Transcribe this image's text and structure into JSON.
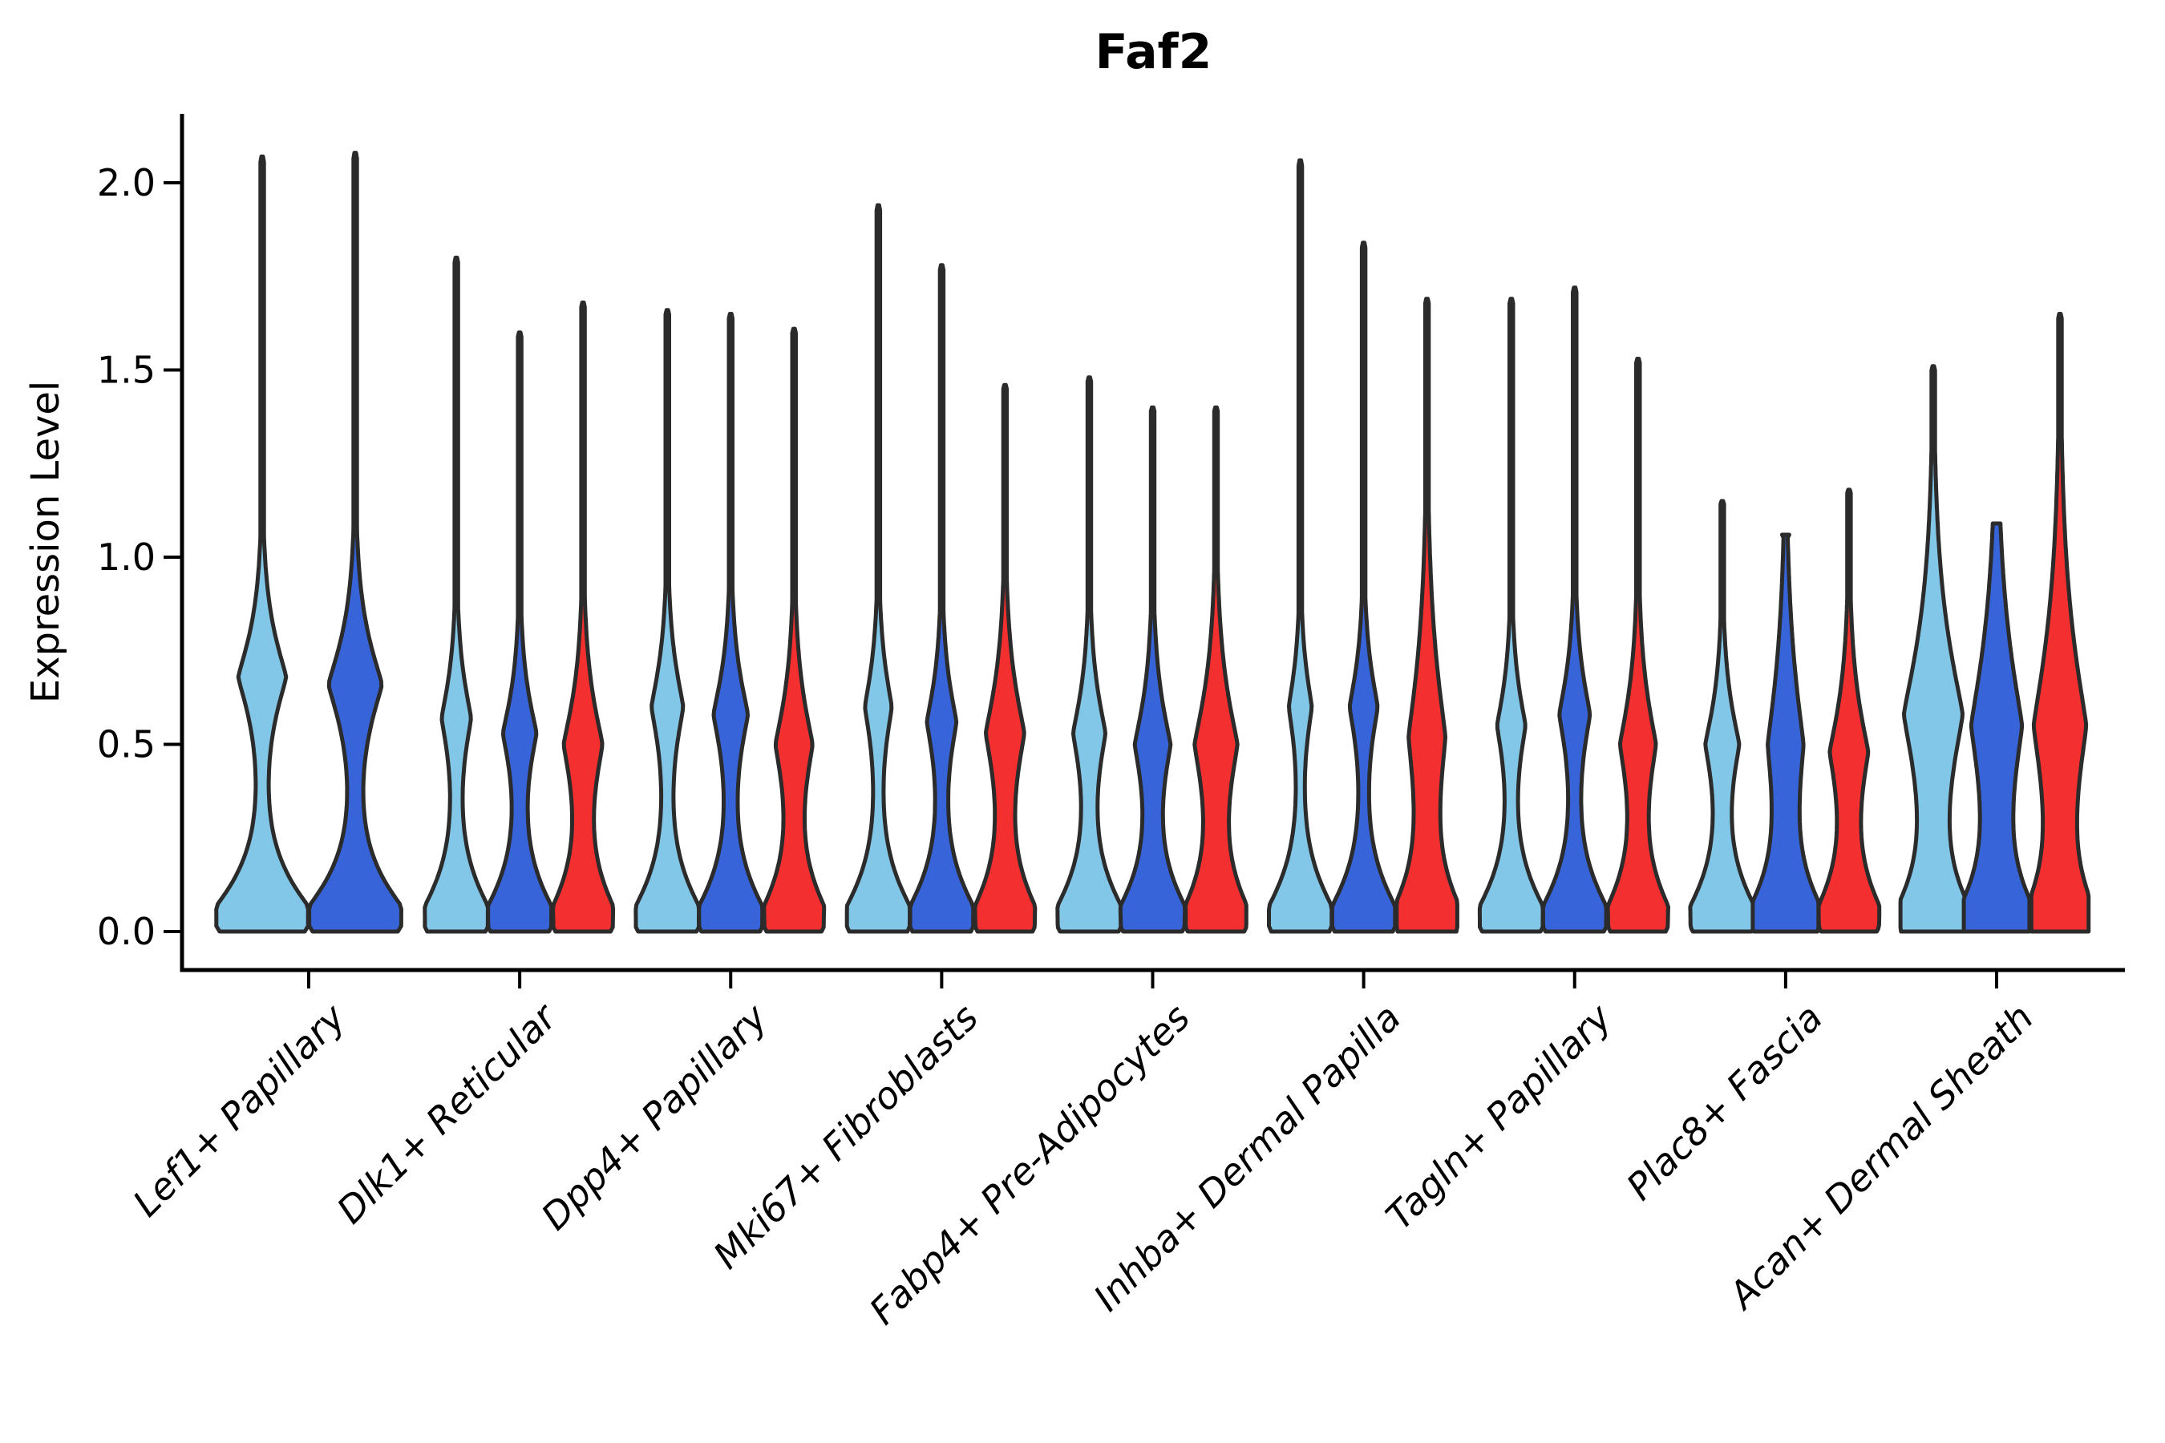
{
  "title": "Faf2",
  "y_axis": {
    "label": "Expression Level",
    "ticks": [
      "0.0",
      "0.5",
      "1.0",
      "1.5",
      "2.0"
    ],
    "tick_values": [
      0.0,
      0.5,
      1.0,
      1.5,
      2.0
    ],
    "ylim_top": 2.18
  },
  "palette": {
    "blue_light": "#82C7E8",
    "blue_dark": "#3765D9",
    "red": "#F42F2F",
    "edge": "#2B2B2B",
    "axis": "#000000"
  },
  "chart_data": {
    "type": "violin",
    "title": "Faf2",
    "xlabel": "",
    "ylabel": "Expression Level",
    "ylim": [
      -0.1,
      2.18
    ],
    "grid": false,
    "legend": "none",
    "hues": [
      "blue_light",
      "blue_dark",
      "red"
    ],
    "categories": [
      "Lef1+ Papillary",
      "Dlk1+ Reticular",
      "Dpp4+ Papillary",
      "Mki67+ Fibroblasts",
      "Fabp4+ Pre-Adipocytes",
      "Inhba+ Dermal Papilla",
      "Tagln+ Papillary",
      "Plac8+ Fascia",
      "Acan+ Dermal Sheath"
    ],
    "groups": [
      {
        "label": "Lef1+ Papillary",
        "violins": [
          {
            "hue": "blue_light",
            "max": 2.07,
            "bulge_amp": 0.52,
            "bulge_center": 0.68,
            "bulge_sigma": 0.17,
            "half_width": 57,
            "offset": -58,
            "tip": "point"
          },
          {
            "hue": "blue_dark",
            "max": 2.08,
            "bulge_amp": 0.58,
            "bulge_center": 0.66,
            "bulge_sigma": 0.18,
            "half_width": 57,
            "offset": 58,
            "tip": "point"
          }
        ]
      },
      {
        "label": "Dlk1+ Reticular",
        "violins": [
          {
            "hue": "blue_light",
            "max": 1.8,
            "bulge_amp": 0.46,
            "bulge_center": 0.57,
            "bulge_sigma": 0.16,
            "half_width": 39,
            "offset": -79,
            "tip": "point"
          },
          {
            "hue": "blue_dark",
            "max": 1.6,
            "bulge_amp": 0.52,
            "bulge_center": 0.53,
            "bulge_sigma": 0.16,
            "half_width": 39,
            "offset": 0,
            "tip": "point"
          },
          {
            "hue": "red",
            "max": 1.68,
            "bulge_amp": 0.65,
            "bulge_center": 0.5,
            "bulge_sigma": 0.19,
            "half_width": 36,
            "offset": 79,
            "tip": "point"
          }
        ]
      },
      {
        "label": "Dpp4+ Papillary",
        "violins": [
          {
            "hue": "blue_light",
            "max": 1.66,
            "bulge_amp": 0.5,
            "bulge_center": 0.6,
            "bulge_sigma": 0.17,
            "half_width": 39,
            "offset": -79,
            "tip": "point"
          },
          {
            "hue": "blue_dark",
            "max": 1.65,
            "bulge_amp": 0.54,
            "bulge_center": 0.58,
            "bulge_sigma": 0.17,
            "half_width": 39,
            "offset": 0,
            "tip": "point"
          },
          {
            "hue": "red",
            "max": 1.61,
            "bulge_amp": 0.62,
            "bulge_center": 0.5,
            "bulge_sigma": 0.19,
            "half_width": 36,
            "offset": 79,
            "tip": "point"
          }
        ]
      },
      {
        "label": "Mki67+ Fibroblasts",
        "violins": [
          {
            "hue": "blue_light",
            "max": 1.94,
            "bulge_amp": 0.42,
            "bulge_center": 0.6,
            "bulge_sigma": 0.16,
            "half_width": 39,
            "offset": -79,
            "tip": "point"
          },
          {
            "hue": "blue_dark",
            "max": 1.78,
            "bulge_amp": 0.46,
            "bulge_center": 0.56,
            "bulge_sigma": 0.16,
            "half_width": 39,
            "offset": 0,
            "tip": "point"
          },
          {
            "hue": "red",
            "max": 1.46,
            "bulge_amp": 0.65,
            "bulge_center": 0.53,
            "bulge_sigma": 0.2,
            "half_width": 36,
            "offset": 79,
            "tip": "point"
          }
        ]
      },
      {
        "label": "Fabp4+ Pre-Adipocytes",
        "violins": [
          {
            "hue": "blue_light",
            "max": 1.48,
            "bulge_amp": 0.5,
            "bulge_center": 0.53,
            "bulge_sigma": 0.17,
            "half_width": 39,
            "offset": -79,
            "tip": "point"
          },
          {
            "hue": "blue_dark",
            "max": 1.4,
            "bulge_amp": 0.55,
            "bulge_center": 0.5,
            "bulge_sigma": 0.18,
            "half_width": 39,
            "offset": 0,
            "tip": "point"
          },
          {
            "hue": "red",
            "max": 1.4,
            "bulge_amp": 0.72,
            "bulge_center": 0.5,
            "bulge_sigma": 0.22,
            "half_width": 36,
            "offset": 79,
            "tip": "point"
          }
        ]
      },
      {
        "label": "Inhba+ Dermal Papilla",
        "violins": [
          {
            "hue": "blue_light",
            "max": 2.06,
            "bulge_amp": 0.36,
            "bulge_center": 0.6,
            "bulge_sigma": 0.15,
            "half_width": 39,
            "offset": -79,
            "tip": "point"
          },
          {
            "hue": "blue_dark",
            "max": 1.84,
            "bulge_amp": 0.44,
            "bulge_center": 0.6,
            "bulge_sigma": 0.16,
            "half_width": 39,
            "offset": 0,
            "tip": "point"
          },
          {
            "hue": "red",
            "max": 1.69,
            "bulge_amp": 0.62,
            "bulge_center": 0.52,
            "bulge_sigma": 0.3,
            "half_width": 36,
            "offset": 79,
            "tip": "point"
          }
        ]
      },
      {
        "label": "Tagln+ Papillary",
        "violins": [
          {
            "hue": "blue_light",
            "max": 1.69,
            "bulge_amp": 0.44,
            "bulge_center": 0.55,
            "bulge_sigma": 0.16,
            "half_width": 39,
            "offset": -79,
            "tip": "point"
          },
          {
            "hue": "blue_dark",
            "max": 1.72,
            "bulge_amp": 0.48,
            "bulge_center": 0.58,
            "bulge_sigma": 0.17,
            "half_width": 39,
            "offset": 0,
            "tip": "point"
          },
          {
            "hue": "red",
            "max": 1.53,
            "bulge_amp": 0.6,
            "bulge_center": 0.5,
            "bulge_sigma": 0.2,
            "half_width": 36,
            "offset": 79,
            "tip": "point"
          }
        ]
      },
      {
        "label": "Plac8+ Fascia",
        "violins": [
          {
            "hue": "blue_light",
            "max": 1.15,
            "bulge_amp": 0.52,
            "bulge_center": 0.5,
            "bulge_sigma": 0.17,
            "half_width": 39,
            "offset": -79,
            "tip": "point"
          },
          {
            "hue": "blue_dark",
            "max": 1.06,
            "bulge_amp": 0.55,
            "bulge_center": 0.5,
            "bulge_sigma": 0.3,
            "half_width": 39,
            "offset": 0,
            "tip": "blunt"
          },
          {
            "hue": "red",
            "max": 1.18,
            "bulge_amp": 0.64,
            "bulge_center": 0.48,
            "bulge_sigma": 0.2,
            "half_width": 36,
            "offset": 79,
            "tip": "point"
          }
        ]
      },
      {
        "label": "Acan+ Dermal Sheath",
        "violins": [
          {
            "hue": "blue_light",
            "max": 1.51,
            "bulge_amp": 0.93,
            "bulge_center": 0.58,
            "bulge_sigma": 0.3,
            "half_width": 39,
            "offset": -79,
            "tip": "point"
          },
          {
            "hue": "blue_dark",
            "max": 1.09,
            "bulge_amp": 0.8,
            "bulge_center": 0.55,
            "bulge_sigma": 0.32,
            "half_width": 39,
            "offset": 0,
            "tip": "blunt"
          },
          {
            "hue": "red",
            "max": 1.65,
            "bulge_amp": 0.95,
            "bulge_center": 0.55,
            "bulge_sigma": 0.34,
            "half_width": 34,
            "offset": 79,
            "tip": "point"
          }
        ]
      }
    ]
  }
}
